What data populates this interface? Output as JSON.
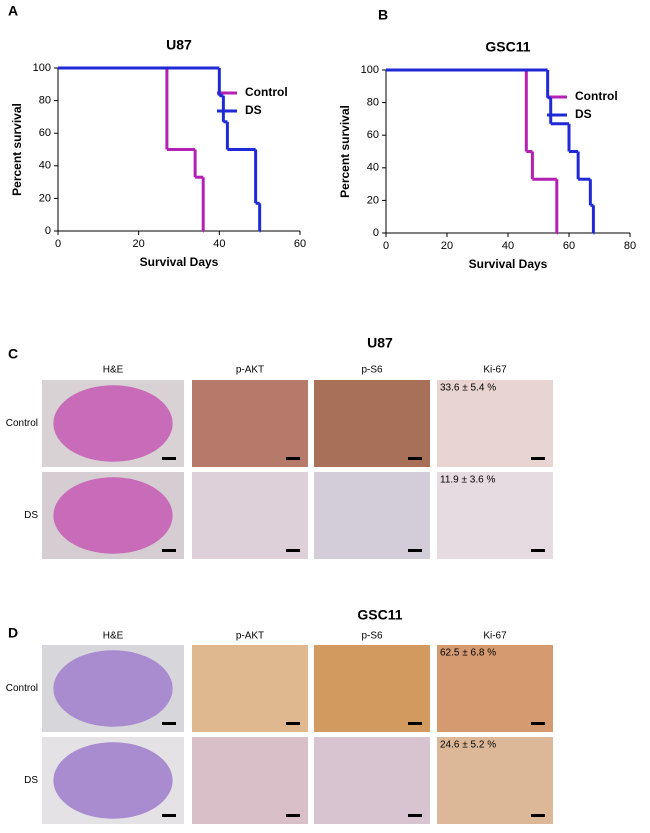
{
  "chart_data": [
    {
      "type": "line",
      "panel_label": "A",
      "title": "U87",
      "x_label": "Survival Days",
      "y_label": "Percent survival",
      "xlim": [
        0,
        60
      ],
      "xticks": [
        0,
        20,
        40,
        60
      ],
      "ylim": [
        0,
        100
      ],
      "yticks": [
        0,
        20,
        40,
        60,
        80,
        100
      ],
      "series": [
        {
          "name": "Control",
          "color": "#b41fb4",
          "x": [
            0,
            27,
            34,
            36
          ],
          "values": [
            100,
            50,
            33,
            0
          ]
        },
        {
          "name": "DS",
          "color": "#1f2ad6",
          "x": [
            0,
            40,
            41,
            42,
            49,
            50
          ],
          "values": [
            100,
            83,
            67,
            50,
            17,
            0
          ]
        }
      ]
    },
    {
      "type": "line",
      "panel_label": "B",
      "title": "GSC11",
      "x_label": "Survival Days",
      "y_label": "Percent survival",
      "xlim": [
        0,
        80
      ],
      "xticks": [
        0,
        20,
        40,
        60,
        80
      ],
      "ylim": [
        0,
        100
      ],
      "yticks": [
        0,
        20,
        40,
        60,
        80,
        100
      ],
      "series": [
        {
          "name": "Control",
          "color": "#b41fb4",
          "x": [
            0,
            46,
            48,
            56
          ],
          "values": [
            100,
            50,
            33,
            0
          ]
        },
        {
          "name": "DS",
          "color": "#1f2ad6",
          "x": [
            0,
            53,
            54,
            60,
            63,
            67,
            68
          ],
          "values": [
            100,
            83,
            67,
            50,
            33,
            17,
            0
          ]
        }
      ]
    }
  ],
  "panel_c": {
    "label": "C",
    "title": "U87",
    "columns": [
      "H&E",
      "p-AKT",
      "p-S6",
      "Ki-67"
    ],
    "rows": [
      "Control",
      "DS"
    ],
    "ki67": [
      "33.6 ± 5.4 %",
      "11.9 ± 3.6 %"
    ]
  },
  "panel_d": {
    "label": "D",
    "title": "GSC11",
    "columns": [
      "H&E",
      "p-AKT",
      "p-S6",
      "Ki-67"
    ],
    "rows": [
      "Control",
      "DS"
    ],
    "ki67": [
      "62.5 ± 6.8 %",
      "24.6 ± 5.2 %"
    ]
  }
}
